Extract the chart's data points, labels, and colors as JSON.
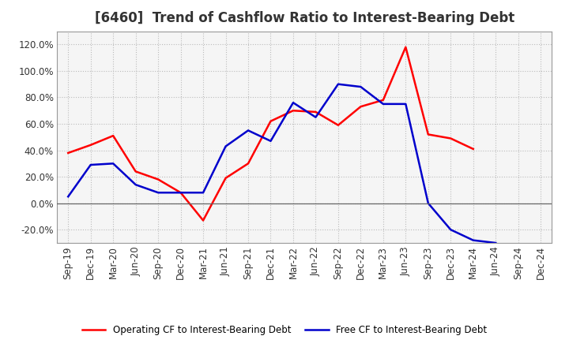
{
  "title": "[6460]  Trend of Cashflow Ratio to Interest-Bearing Debt",
  "x_labels": [
    "Sep-19",
    "Dec-19",
    "Mar-20",
    "Jun-20",
    "Sep-20",
    "Dec-20",
    "Mar-21",
    "Jun-21",
    "Sep-21",
    "Dec-21",
    "Mar-22",
    "Jun-22",
    "Sep-22",
    "Dec-22",
    "Mar-23",
    "Jun-23",
    "Sep-23",
    "Dec-23",
    "Mar-24",
    "Jun-24",
    "Sep-24",
    "Dec-24"
  ],
  "operating_cf": [
    38,
    44,
    51,
    24,
    18,
    8,
    -13,
    19,
    30,
    62,
    70,
    69,
    59,
    73,
    78,
    118,
    52,
    49,
    41,
    null,
    null,
    null
  ],
  "free_cf": [
    5,
    29,
    30,
    14,
    8,
    8,
    8,
    43,
    55,
    47,
    76,
    65,
    90,
    88,
    75,
    75,
    0,
    -20,
    -28,
    -30,
    null,
    null
  ],
  "operating_color": "#ff0000",
  "free_color": "#0000cc",
  "ylim": [
    -30,
    130
  ],
  "yticks": [
    -20,
    0,
    20,
    40,
    60,
    80,
    100,
    120
  ],
  "ytick_labels": [
    "-20.0%",
    "0.0%",
    "20.0%",
    "40.0%",
    "60.0%",
    "80.0%",
    "100.0%",
    "120.0%"
  ],
  "legend_operating": "Operating CF to Interest-Bearing Debt",
  "legend_free": "Free CF to Interest-Bearing Debt",
  "background_color": "#ffffff",
  "plot_bg_color": "#f5f5f5",
  "grid_color": "#bbbbbb",
  "title_color": "#333333",
  "title_fontsize": 12,
  "axis_fontsize": 8.5
}
